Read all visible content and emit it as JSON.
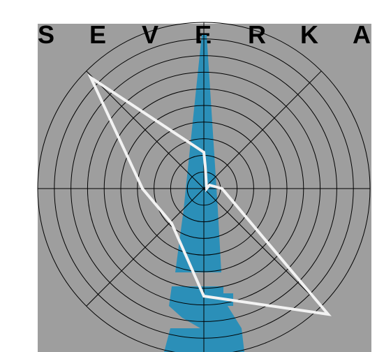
{
  "title": {
    "letters": [
      "S",
      "E",
      "V",
      "E",
      "R",
      "K",
      "A"
    ]
  },
  "colors": {
    "page_background": "#ffffff",
    "panel_background": "#9e9e9e",
    "grid_lines": "#000000",
    "blue_shape": "#2b8fb8",
    "white_path": "#f2f2f2",
    "title_text": "#000000"
  },
  "graphic": {
    "ring_count": 10,
    "spoke_count": 8
  }
}
